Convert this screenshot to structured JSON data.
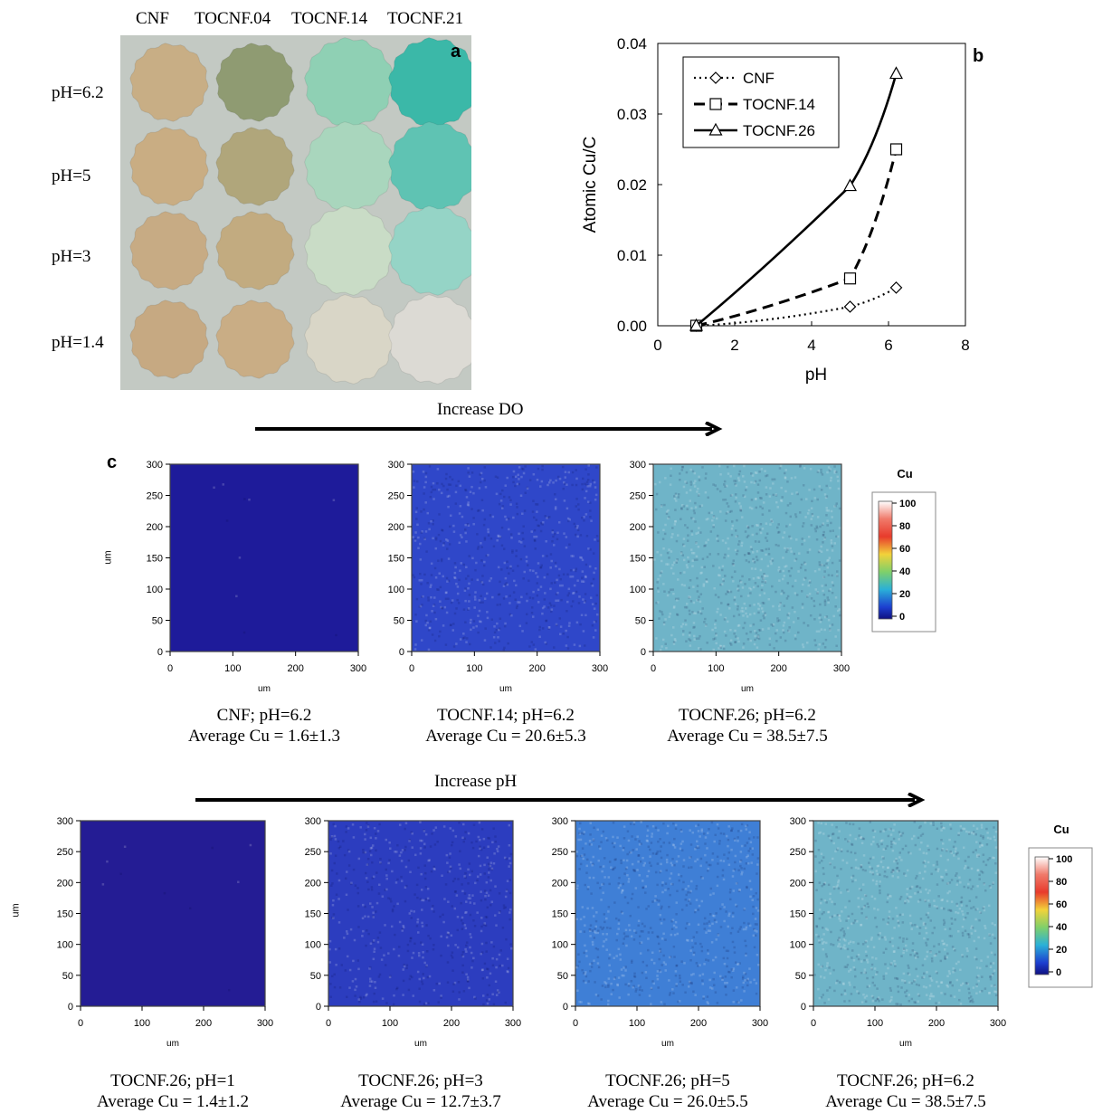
{
  "panel_a": {
    "letter": "a",
    "columns": [
      "CNF",
      "TOCNF.04",
      "TOCNF.14",
      "TOCNF.21"
    ],
    "rows": [
      "pH=6.2",
      "pH=5",
      "pH=3",
      "pH=1.4"
    ],
    "colors": [
      [
        "#c8ae85",
        "#8f9b72",
        "#8fd0b4",
        "#3bb8a8"
      ],
      [
        "#c9ad83",
        "#b0a67b",
        "#a9d6bd",
        "#5fc3b3"
      ],
      [
        "#c7ab84",
        "#c2ab80",
        "#c9dcc6",
        "#95d4c6"
      ],
      [
        "#c6a982",
        "#c9ad85",
        "#d9d6c7",
        "#dcdad4"
      ]
    ],
    "background": "#c3c9c3"
  },
  "chart_data": [
    {
      "type": "line",
      "panel": "b",
      "title": "",
      "xlabel": "pH",
      "ylabel": "Atomic Cu/C",
      "xlim": [
        0,
        8
      ],
      "ylim": [
        0,
        0.04
      ],
      "xticks": [
        "0",
        "2",
        "4",
        "6",
        "8"
      ],
      "yticks": [
        "0.00",
        "0.01",
        "0.02",
        "0.03",
        "0.04"
      ],
      "legend_position": "top-left",
      "series": [
        {
          "name": "CNF",
          "marker": "diamond",
          "dash": "dotted",
          "x": [
            1,
            5,
            6.2
          ],
          "y": [
            0.0,
            0.0027,
            0.0054
          ]
        },
        {
          "name": "TOCNF.14",
          "marker": "square",
          "dash": "dashed",
          "x": [
            1,
            5,
            6.2
          ],
          "y": [
            0.0,
            0.0067,
            0.025
          ]
        },
        {
          "name": "TOCNF.26",
          "marker": "triangle",
          "dash": "solid",
          "x": [
            1,
            5,
            6.2
          ],
          "y": [
            0.0,
            0.0198,
            0.0357
          ]
        }
      ]
    }
  ],
  "panel_c": {
    "letter": "c",
    "arrow_top": "Increase DO",
    "arrow_bottom": "Increase pH",
    "axis_unit": "um",
    "ticks": [
      "0",
      "50",
      "100",
      "150",
      "200",
      "250",
      "300"
    ],
    "xticks": [
      "0",
      "100",
      "200",
      "300"
    ],
    "colorbar_title": "Cu",
    "colorbar_ticks": [
      "100",
      "80",
      "60",
      "40",
      "20",
      "0"
    ],
    "top_maps": [
      {
        "fill": "#1e1b9a",
        "line1": "CNF; pH=6.2",
        "line2": "Average Cu = 1.6±1.3"
      },
      {
        "fill": "#2f47c9",
        "line1": "TOCNF.14; pH=6.2",
        "line2": "Average Cu = 20.6±5.3"
      },
      {
        "fill": "#6fb4c8",
        "line1": "TOCNF.26; pH=6.2",
        "line2": "Average Cu = 38.5±7.5"
      }
    ],
    "bottom_maps": [
      {
        "fill": "#241c94",
        "line1": "TOCNF.26; pH=1",
        "line2": "Average Cu = 1.4±1.2"
      },
      {
        "fill": "#2c3dbf",
        "line1": "TOCNF.26; pH=3",
        "line2": "Average Cu = 12.7±3.7"
      },
      {
        "fill": "#3f7fd6",
        "line1": "TOCNF.26; pH=5",
        "line2": "Average Cu  = 26.0±5.5"
      },
      {
        "fill": "#6fb4c8",
        "line1": "TOCNF.26; pH=6.2",
        "line2": "Average Cu = 38.5±7.5"
      }
    ]
  }
}
